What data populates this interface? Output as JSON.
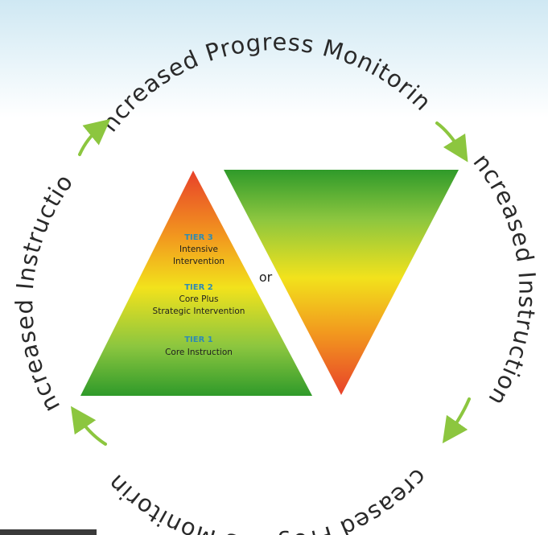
{
  "cycle": {
    "top_label": "Increased Progress Monitoring",
    "right_label": "Increased Instruction",
    "bottom_label": "Increased Progress Monitoring",
    "left_label": "Increased Instruction"
  },
  "pyramid": {
    "tiers": [
      {
        "heading": "TIER 3",
        "lines": [
          "Intensive",
          "Intervention"
        ]
      },
      {
        "heading": "TIER 2",
        "lines": [
          "Core Plus",
          "Strategic Intervention"
        ]
      },
      {
        "heading": "TIER 1",
        "lines": [
          "Core Instruction"
        ]
      }
    ]
  },
  "connector": "or",
  "colors": {
    "arrow": "#8cc63f",
    "tier_heading": "#2e8ab5",
    "green": "#2f9a2a",
    "yellow": "#f2e21c",
    "red": "#e8412a"
  }
}
